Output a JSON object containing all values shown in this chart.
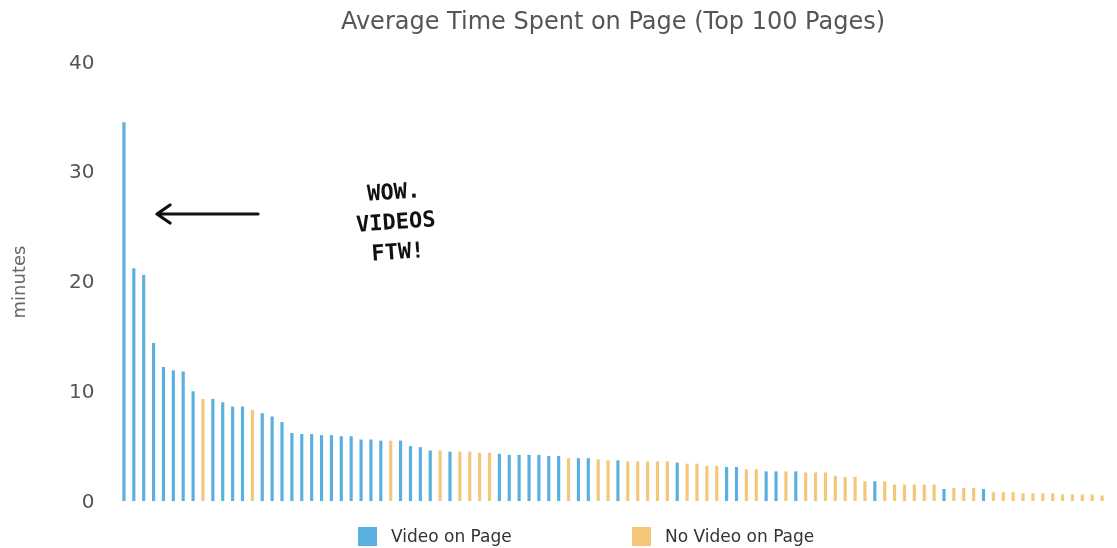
{
  "chart_data": {
    "type": "bar",
    "title": "Average Time Spent on Page (Top 100 Pages)",
    "ylabel": "minutes",
    "categories": [
      null,
      null,
      null,
      null,
      null,
      null,
      null,
      null,
      null,
      null,
      null,
      null,
      null,
      null,
      null,
      null,
      null,
      null,
      null,
      null,
      null,
      null,
      null,
      null,
      null,
      null,
      null,
      null,
      null,
      null,
      null,
      null,
      null,
      null,
      null,
      null,
      null,
      null,
      null,
      null,
      null,
      null,
      null,
      null,
      null,
      null,
      null,
      null,
      null,
      null,
      null,
      null,
      null,
      null,
      null,
      null,
      null,
      null,
      null,
      null,
      null,
      null,
      null,
      null,
      null,
      null,
      null,
      null,
      null,
      null,
      null,
      null,
      null,
      null,
      null,
      null,
      null,
      null,
      null,
      null,
      null,
      null,
      null,
      null,
      null,
      null,
      null,
      null,
      null,
      null,
      null,
      null,
      null,
      null,
      null,
      null,
      null,
      null,
      null,
      null
    ],
    "values": [
      34.5,
      21.2,
      20.6,
      14.4,
      12.2,
      11.9,
      11.8,
      10.0,
      9.3,
      9.3,
      9.0,
      8.6,
      8.6,
      8.3,
      8.0,
      7.7,
      7.2,
      6.2,
      6.1,
      6.1,
      6.0,
      6.0,
      5.9,
      5.9,
      5.6,
      5.6,
      5.5,
      5.5,
      5.5,
      5.0,
      4.9,
      4.6,
      4.6,
      4.5,
      4.5,
      4.5,
      4.4,
      4.4,
      4.3,
      4.2,
      4.2,
      4.2,
      4.2,
      4.1,
      4.1,
      3.9,
      3.9,
      3.9,
      3.8,
      3.7,
      3.7,
      3.6,
      3.6,
      3.6,
      3.6,
      3.6,
      3.5,
      3.4,
      3.4,
      3.2,
      3.2,
      3.1,
      3.1,
      2.9,
      2.9,
      2.7,
      2.7,
      2.7,
      2.7,
      2.6,
      2.6,
      2.6,
      2.3,
      2.2,
      2.2,
      1.8,
      1.8,
      1.8,
      1.5,
      1.5,
      1.5,
      1.5,
      1.5,
      1.1,
      1.2,
      1.2,
      1.2,
      1.1,
      0.8,
      0.8,
      0.8,
      0.7,
      0.7,
      0.7,
      0.7,
      0.6,
      0.6,
      0.6,
      0.6,
      0.5
    ],
    "colors": [
      "#5aafe0",
      "#5aafe0",
      "#5aafe0",
      "#5aafe0",
      "#5aafe0",
      "#5aafe0",
      "#5aafe0",
      "#5aafe0",
      "#f5c77a",
      "#5aafe0",
      "#5aafe0",
      "#5aafe0",
      "#5aafe0",
      "#f5c77a",
      "#5aafe0",
      "#5aafe0",
      "#5aafe0",
      "#5aafe0",
      "#5aafe0",
      "#5aafe0",
      "#5aafe0",
      "#5aafe0",
      "#5aafe0",
      "#5aafe0",
      "#5aafe0",
      "#5aafe0",
      "#5aafe0",
      "#f5c77a",
      "#5aafe0",
      "#5aafe0",
      "#5aafe0",
      "#5aafe0",
      "#f5c77a",
      "#5aafe0",
      "#f5c77a",
      "#f5c77a",
      "#f5c77a",
      "#f5c77a",
      "#5aafe0",
      "#5aafe0",
      "#5aafe0",
      "#5aafe0",
      "#5aafe0",
      "#5aafe0",
      "#5aafe0",
      "#f5c77a",
      "#5aafe0",
      "#5aafe0",
      "#f5c77a",
      "#f5c77a",
      "#5aafe0",
      "#f5c77a",
      "#f5c77a",
      "#f5c77a",
      "#f5c77a",
      "#f5c77a",
      "#5aafe0",
      "#f5c77a",
      "#f5c77a",
      "#f5c77a",
      "#f5c77a",
      "#5aafe0",
      "#5aafe0",
      "#f5c77a",
      "#f5c77a",
      "#5aafe0",
      "#5aafe0",
      "#f5c77a",
      "#5aafe0",
      "#f5c77a",
      "#f5c77a",
      "#f5c77a",
      "#f5c77a",
      "#f5c77a",
      "#f5c77a",
      "#f5c77a",
      "#5aafe0",
      "#f5c77a",
      "#f5c77a",
      "#f5c77a",
      "#f5c77a",
      "#f5c77a",
      "#f5c77a",
      "#5aafe0",
      "#f5c77a",
      "#f5c77a",
      "#f5c77a",
      "#5aafe0",
      "#f5c77a",
      "#f5c77a",
      "#f5c77a",
      "#f5c77a",
      "#f5c77a",
      "#f5c77a",
      "#f5c77a",
      "#f5c77a",
      "#f5c77a",
      "#f5c77a",
      "#f5c77a",
      "#f5c77a"
    ],
    "ylim": [
      0,
      40
    ],
    "yticks": [
      0,
      10,
      20,
      30,
      40
    ],
    "annotations": [
      "WOW. VIDEOS FTW!",
      "Video on Page",
      "No Video on Page"
    ]
  }
}
